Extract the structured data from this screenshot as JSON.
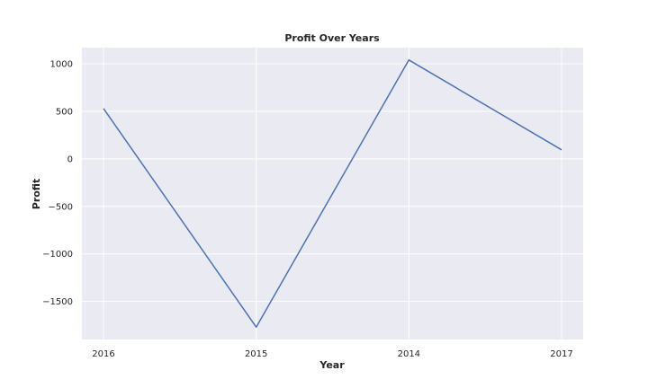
{
  "chart_data": {
    "type": "line",
    "title": "Profit Over Years",
    "xlabel": "Year",
    "ylabel": "Profit",
    "categories": [
      "2016",
      "2015",
      "2014",
      "2017"
    ],
    "series": [
      {
        "values": [
          530,
          -1770,
          1040,
          95
        ]
      }
    ],
    "ylim": [
      -1900,
      1170
    ],
    "yticks": [
      1000,
      500,
      0,
      -500,
      -1000,
      -1500
    ],
    "ytick_labels": [
      "1000",
      "500",
      "0",
      "−500",
      "−1000",
      "−1500"
    ],
    "grid": true,
    "legend": "none",
    "colors": {
      "background": "#eaeaf2",
      "grid": "#ffffff",
      "line": "#4c72b0"
    }
  }
}
